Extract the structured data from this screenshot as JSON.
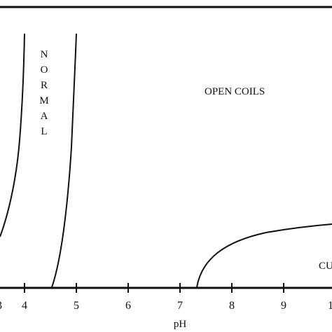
{
  "diagram": {
    "x_axis": {
      "title": "pH",
      "ticks": [
        "4",
        "5",
        "6",
        "7",
        "8",
        "9",
        "1"
      ],
      "partial_left_tick": "3"
    },
    "regions": {
      "normal_letters": [
        "N",
        "O",
        "R",
        "M",
        "A",
        "L"
      ],
      "open_coils": "OPEN COILS",
      "cut_off": "CU"
    },
    "colors": {
      "ink": "#111111",
      "background": "#ffffff"
    }
  }
}
